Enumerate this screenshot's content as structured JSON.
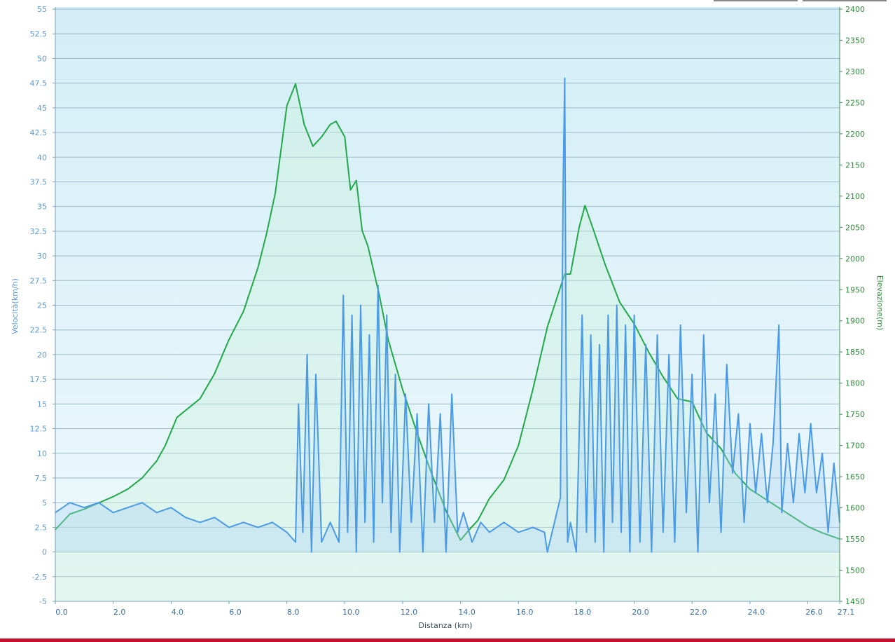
{
  "chart_data": {
    "type": "line",
    "title": "",
    "xlabel": "Distanza  (km)",
    "ylabel_left": "Velocità(km/h)",
    "ylabel_right": "Elevazione(m)",
    "x_range": [
      0,
      27.1
    ],
    "y_left_range": [
      -5,
      55
    ],
    "y_right_range": [
      1450,
      2400
    ],
    "grid": true,
    "legend": "none",
    "x_ticks": [
      "0.0",
      "2.0",
      "4.0",
      "6.0",
      "8.0",
      "10.0",
      "12.0",
      "14.0",
      "16.0",
      "18.0",
      "20.0",
      "22.0",
      "24.0",
      "26.0",
      "27.1"
    ],
    "x_tick_values": [
      0,
      2,
      4,
      6,
      8,
      10,
      12,
      14,
      16,
      18,
      20,
      22,
      24,
      26,
      27.1
    ],
    "y_left_ticks": [
      "55",
      "52.5",
      "50",
      "47.5",
      "45",
      "42.5",
      "40",
      "37.5",
      "35",
      "32.5",
      "30",
      "27.5",
      "25",
      "22.5",
      "20",
      "17.5",
      "15",
      "12.5",
      "10",
      "7.5",
      "5",
      "2.5",
      "0",
      "-2.5",
      "-5"
    ],
    "y_right_ticks": [
      "2400",
      "2350",
      "2300",
      "2250",
      "2200",
      "2150",
      "2100",
      "2050",
      "2000",
      "1950",
      "1900",
      "1850",
      "1800",
      "1750",
      "1700",
      "1650",
      "1600",
      "1550",
      "1500",
      "1450"
    ],
    "series": [
      {
        "axis": "right",
        "color": "#22a84a",
        "fill": "#c9f2d8",
        "x": [
          0,
          0.5,
          1.0,
          1.5,
          2.0,
          2.5,
          3.0,
          3.5,
          3.8,
          4.2,
          5.0,
          5.5,
          6.0,
          6.5,
          7.0,
          7.3,
          7.6,
          8.0,
          8.3,
          8.6,
          8.9,
          9.2,
          9.5,
          9.7,
          10.0,
          10.2,
          10.4,
          10.6,
          10.8,
          11.2,
          11.5,
          12.0,
          12.5,
          13.0,
          13.5,
          14.0,
          14.3,
          14.6,
          15.0,
          15.5,
          16.0,
          16.5,
          17.0,
          17.6,
          17.8,
          18.1,
          18.3,
          18.6,
          19.0,
          19.5,
          20.0,
          20.5,
          21.0,
          21.5,
          22.0,
          22.5,
          23.0,
          23.5,
          24.0,
          24.5,
          25.0,
          25.5,
          26.0,
          26.5,
          27.1
        ],
        "y": [
          1565,
          1590,
          1598,
          1608,
          1618,
          1630,
          1648,
          1675,
          1700,
          1745,
          1775,
          1815,
          1870,
          1915,
          1985,
          2040,
          2105,
          2245,
          2280,
          2215,
          2180,
          2195,
          2215,
          2220,
          2195,
          2110,
          2125,
          2045,
          2020,
          1940,
          1870,
          1790,
          1720,
          1655,
          1595,
          1548,
          1565,
          1580,
          1615,
          1645,
          1700,
          1790,
          1890,
          1975,
          1975,
          2050,
          2085,
          2045,
          1990,
          1930,
          1895,
          1850,
          1810,
          1775,
          1770,
          1720,
          1695,
          1655,
          1630,
          1615,
          1600,
          1585,
          1570,
          1560,
          1550
        ]
      },
      {
        "axis": "left",
        "color": "#4a9ae6",
        "fill": "#a9d2f3",
        "x": [
          0,
          0.5,
          1.0,
          1.5,
          2.0,
          2.5,
          3.0,
          3.5,
          4.0,
          4.5,
          5.0,
          5.5,
          6.0,
          6.5,
          7.0,
          7.5,
          8.0,
          8.3,
          8.4,
          8.55,
          8.7,
          8.85,
          9.0,
          9.2,
          9.5,
          9.8,
          9.95,
          10.1,
          10.25,
          10.4,
          10.55,
          10.7,
          10.85,
          11.0,
          11.15,
          11.3,
          11.45,
          11.6,
          11.75,
          11.9,
          12.1,
          12.3,
          12.5,
          12.7,
          12.9,
          13.1,
          13.3,
          13.5,
          13.7,
          13.9,
          14.1,
          14.4,
          14.7,
          15.0,
          15.5,
          16.0,
          16.5,
          16.9,
          17.0,
          17.45,
          17.55,
          17.6,
          17.65,
          17.7,
          17.8,
          18.0,
          18.2,
          18.35,
          18.5,
          18.65,
          18.8,
          18.95,
          19.1,
          19.25,
          19.4,
          19.55,
          19.7,
          19.85,
          20.0,
          20.2,
          20.4,
          20.6,
          20.8,
          21.0,
          21.2,
          21.4,
          21.6,
          21.8,
          22.0,
          22.2,
          22.4,
          22.6,
          22.8,
          23.0,
          23.2,
          23.4,
          23.6,
          23.8,
          24.0,
          24.2,
          24.4,
          24.6,
          24.8,
          25.0,
          25.1,
          25.3,
          25.5,
          25.7,
          25.9,
          26.1,
          26.3,
          26.5,
          26.7,
          26.9,
          27.1
        ],
        "y": [
          4,
          5,
          4.5,
          5,
          4,
          4.5,
          5,
          4,
          4.5,
          3.5,
          3,
          3.5,
          2.5,
          3,
          2.5,
          3,
          2,
          1,
          15,
          2,
          20,
          0,
          18,
          1,
          3,
          1,
          26,
          2,
          24,
          0,
          25,
          3,
          22,
          1,
          27,
          5,
          24,
          2,
          18,
          0,
          16,
          3,
          14,
          0,
          15,
          3,
          14,
          0,
          16,
          2,
          4,
          1,
          3,
          2,
          3,
          2,
          2.5,
          2,
          0,
          5.5,
          38,
          48,
          18,
          1,
          3,
          0,
          24,
          2,
          22,
          1,
          21,
          0,
          24,
          3,
          25,
          2,
          23,
          0,
          24,
          1,
          21,
          0,
          22,
          2,
          20,
          1,
          23,
          4,
          18,
          0,
          22,
          5,
          16,
          2,
          19,
          8,
          14,
          3,
          13,
          6,
          12,
          5,
          11,
          23,
          4,
          11,
          5,
          12,
          6,
          13,
          6,
          10,
          2,
          9,
          3
        ]
      }
    ]
  }
}
